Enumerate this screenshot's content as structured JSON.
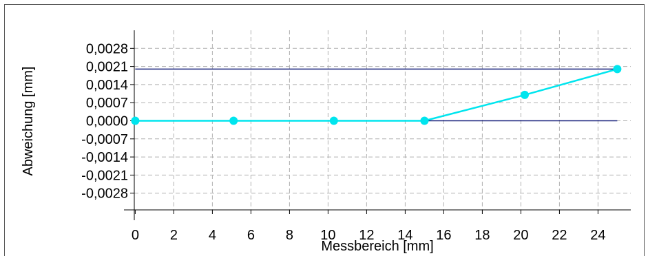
{
  "chart_data": {
    "type": "line",
    "title": "",
    "xlabel": "Messbereich [mm]",
    "ylabel": "Abweichung [mm]",
    "xlim": [
      -0.3,
      25.7
    ],
    "ylim": [
      -0.0035,
      0.0035
    ],
    "x_ticks": [
      0,
      2,
      4,
      6,
      8,
      10,
      12,
      14,
      16,
      18,
      20,
      22,
      24
    ],
    "x_tick_labels": [
      "0",
      "2",
      "4",
      "6",
      "8",
      "10",
      "12",
      "14",
      "16",
      "18",
      "20",
      "22",
      "24"
    ],
    "y_ticks": [
      0.0028,
      0.0021,
      0.0014,
      0.0007,
      0.0,
      -0.0007,
      -0.0014,
      -0.0021,
      -0.0028
    ],
    "y_tick_labels": [
      "0,0028",
      "0,0021",
      "0,0014",
      "0,0007",
      "0,0000",
      "-0,0007",
      "-0,0014",
      "-0,0021",
      "-0,0028"
    ],
    "grid": true,
    "series": [
      {
        "x": [
          0,
          5.1,
          10.3,
          15.0,
          20.2,
          25.0
        ],
        "y": [
          0.0,
          0.0,
          0.0,
          0.0,
          0.001,
          0.002
        ]
      }
    ],
    "reference_lines": [
      {
        "axis": "y",
        "value": 0.002,
        "x_range": [
          0,
          25
        ]
      },
      {
        "axis": "y",
        "value": 0.0,
        "x_range": [
          0,
          25
        ]
      }
    ],
    "colors": {
      "series": "#00e5ee",
      "reference": "#1a237e",
      "grid": "#b0b0b0",
      "axis": "#000000",
      "frame": "#555555"
    }
  }
}
